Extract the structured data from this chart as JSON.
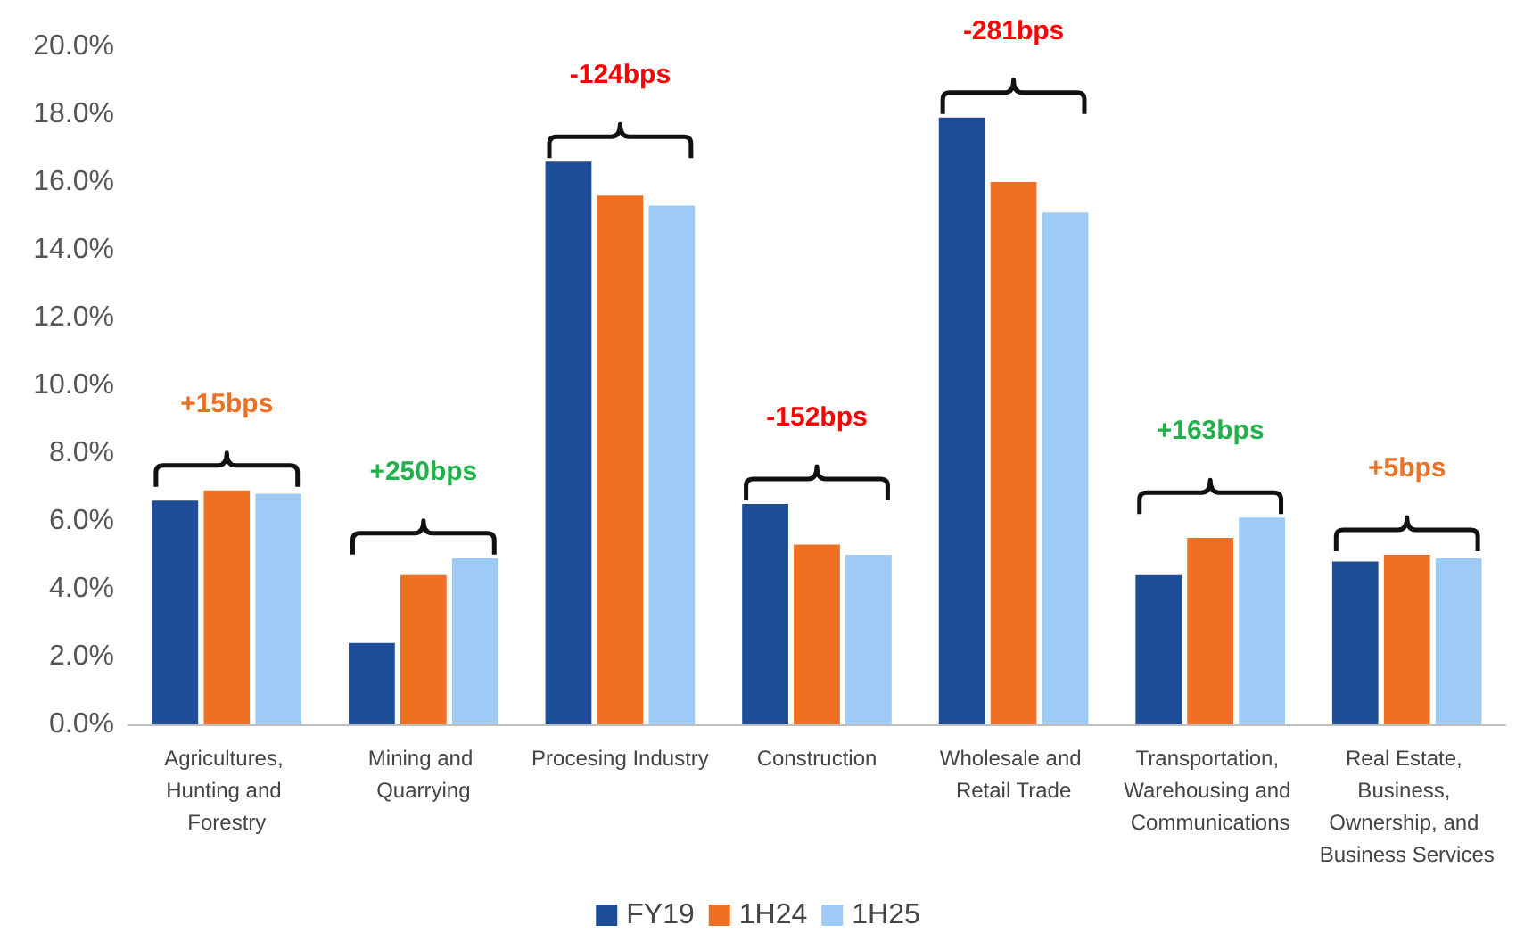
{
  "chart_data": {
    "type": "bar",
    "categories": [
      "Agricultures, Hunting and Forestry",
      "Mining and Quarrying",
      "Procesing Industry",
      "Construction",
      "Wholesale and Retail Trade",
      "Transportation, Warehousing and Communications",
      "Real Estate, Business, Ownership, and Business Services"
    ],
    "series": [
      {
        "name": "FY19",
        "color": "#1f4e99",
        "values": [
          6.6,
          2.4,
          16.6,
          6.5,
          17.9,
          4.4,
          4.8
        ]
      },
      {
        "name": "1H24",
        "color": "#f07023",
        "values": [
          6.9,
          4.4,
          15.6,
          5.3,
          16.0,
          5.5,
          5.0
        ]
      },
      {
        "name": "1H25",
        "color": "#9dcbf5",
        "values": [
          6.8,
          4.9,
          15.3,
          5.0,
          15.1,
          6.1,
          4.9
        ]
      }
    ],
    "ylim": [
      0,
      20
    ],
    "yticks": [
      {
        "value": 0,
        "label": "0.0%"
      },
      {
        "value": 2,
        "label": "2.0%"
      },
      {
        "value": 4,
        "label": "4.0%"
      },
      {
        "value": 6,
        "label": "6.0%"
      },
      {
        "value": 8,
        "label": "8.0%"
      },
      {
        "value": 10,
        "label": "10.0%"
      },
      {
        "value": 12,
        "label": "12.0%"
      },
      {
        "value": 14,
        "label": "14.0%"
      },
      {
        "value": 16,
        "label": "16.0%"
      },
      {
        "value": 18,
        "label": "18.0%"
      },
      {
        "value": 20,
        "label": "20.0%"
      }
    ],
    "annotations": [
      "+15bps",
      "+250bps",
      "-124bps",
      "-152bps",
      "-281bps",
      "+163bps",
      "+5bps"
    ],
    "grid": false,
    "legend": "bottom"
  }
}
